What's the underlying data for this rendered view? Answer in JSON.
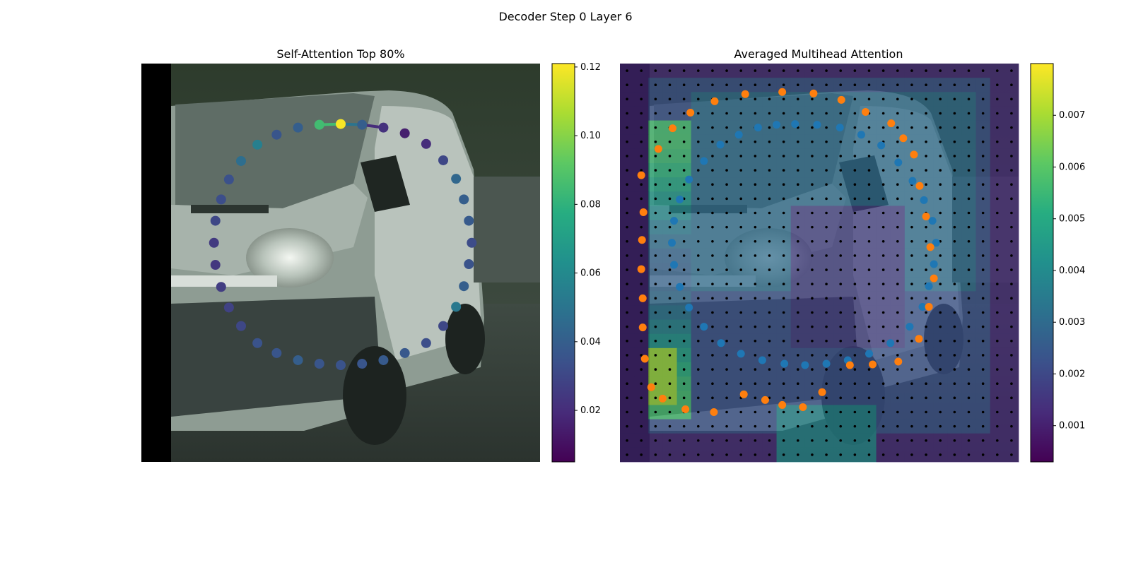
{
  "chart_data": [
    {
      "type": "scatter",
      "title": "Self-Attention Top 80%",
      "background": "van photo (grayscale-green street scene)",
      "xlim": [
        0,
        56
      ],
      "ylim": [
        0,
        56
      ],
      "points": [
        {
          "x": 28,
          "y": 8.5,
          "value": 0.12
        },
        {
          "x": 31,
          "y": 8.6,
          "value": 0.04
        },
        {
          "x": 34,
          "y": 9.0,
          "value": 0.022
        },
        {
          "x": 37,
          "y": 9.8,
          "value": 0.015
        },
        {
          "x": 40,
          "y": 11.3,
          "value": 0.02
        },
        {
          "x": 42.4,
          "y": 13.6,
          "value": 0.03
        },
        {
          "x": 44.2,
          "y": 16.2,
          "value": 0.044
        },
        {
          "x": 45.3,
          "y": 19.1,
          "value": 0.04
        },
        {
          "x": 46.0,
          "y": 22.1,
          "value": 0.038
        },
        {
          "x": 46.4,
          "y": 25.2,
          "value": 0.032
        },
        {
          "x": 46.0,
          "y": 28.2,
          "value": 0.035
        },
        {
          "x": 45.3,
          "y": 31.3,
          "value": 0.04
        },
        {
          "x": 44.2,
          "y": 34.2,
          "value": 0.052
        },
        {
          "x": 42.4,
          "y": 36.9,
          "value": 0.03
        },
        {
          "x": 40,
          "y": 39.3,
          "value": 0.033
        },
        {
          "x": 37,
          "y": 40.7,
          "value": 0.037
        },
        {
          "x": 34,
          "y": 41.7,
          "value": 0.038
        },
        {
          "x": 31,
          "y": 42.2,
          "value": 0.036
        },
        {
          "x": 28,
          "y": 42.4,
          "value": 0.035
        },
        {
          "x": 25,
          "y": 42.2,
          "value": 0.036
        },
        {
          "x": 22,
          "y": 41.7,
          "value": 0.04
        },
        {
          "x": 19,
          "y": 40.7,
          "value": 0.036
        },
        {
          "x": 16.3,
          "y": 39.3,
          "value": 0.035
        },
        {
          "x": 14.0,
          "y": 36.9,
          "value": 0.03
        },
        {
          "x": 12.3,
          "y": 34.3,
          "value": 0.028
        },
        {
          "x": 11.2,
          "y": 31.4,
          "value": 0.026
        },
        {
          "x": 10.4,
          "y": 28.3,
          "value": 0.024
        },
        {
          "x": 10.2,
          "y": 25.2,
          "value": 0.025
        },
        {
          "x": 10.4,
          "y": 22.1,
          "value": 0.03
        },
        {
          "x": 11.2,
          "y": 19.1,
          "value": 0.033
        },
        {
          "x": 12.3,
          "y": 16.3,
          "value": 0.034
        },
        {
          "x": 14.0,
          "y": 13.7,
          "value": 0.047
        },
        {
          "x": 16.3,
          "y": 11.4,
          "value": 0.055
        },
        {
          "x": 19,
          "y": 10.0,
          "value": 0.036
        },
        {
          "x": 22,
          "y": 9.0,
          "value": 0.04
        },
        {
          "x": 25,
          "y": 8.6,
          "value": 0.085
        }
      ],
      "highlight_edges": [
        {
          "from": 0,
          "to": 35,
          "value": 0.085
        },
        {
          "from": 0,
          "to": 1,
          "value": 0.05
        },
        {
          "from": 1,
          "to": 2,
          "value": 0.02
        }
      ],
      "colorbar": {
        "cmap": "viridis",
        "range": [
          0.005,
          0.121
        ],
        "ticks": [
          "0.02",
          "0.04",
          "0.06",
          "0.08",
          "0.10",
          "0.12"
        ],
        "tick_values": [
          0.02,
          0.04,
          0.06,
          0.08,
          0.1,
          0.12
        ]
      }
    },
    {
      "type": "heatmap",
      "title": "Averaged Multihead Attention",
      "background": "van photo overlaid with attention heatmap",
      "grid": {
        "rows": 28,
        "cols": 28
      },
      "blue_points": [
        {
          "x": 24.6,
          "y": 8.5
        },
        {
          "x": 27.7,
          "y": 8.6
        },
        {
          "x": 30.9,
          "y": 9.0
        },
        {
          "x": 33.9,
          "y": 10.0
        },
        {
          "x": 36.7,
          "y": 11.5
        },
        {
          "x": 39.1,
          "y": 13.9
        },
        {
          "x": 41.1,
          "y": 16.5
        },
        {
          "x": 42.7,
          "y": 19.2
        },
        {
          "x": 43.9,
          "y": 22.1
        },
        {
          "x": 44.4,
          "y": 25.2
        },
        {
          "x": 44.1,
          "y": 28.2
        },
        {
          "x": 43.4,
          "y": 31.3
        },
        {
          "x": 42.5,
          "y": 34.2
        },
        {
          "x": 40.7,
          "y": 37.0
        },
        {
          "x": 38.0,
          "y": 39.3
        },
        {
          "x": 35.0,
          "y": 40.8
        },
        {
          "x": 32.0,
          "y": 41.7
        },
        {
          "x": 29.0,
          "y": 42.2
        },
        {
          "x": 26.0,
          "y": 42.4
        },
        {
          "x": 23.1,
          "y": 42.2
        },
        {
          "x": 20.0,
          "y": 41.7
        },
        {
          "x": 17.0,
          "y": 40.8
        },
        {
          "x": 14.2,
          "y": 39.3
        },
        {
          "x": 11.8,
          "y": 37.0
        },
        {
          "x": 9.7,
          "y": 34.3
        },
        {
          "x": 8.4,
          "y": 31.4
        },
        {
          "x": 7.6,
          "y": 28.3
        },
        {
          "x": 7.3,
          "y": 25.2
        },
        {
          "x": 7.6,
          "y": 22.1
        },
        {
          "x": 8.4,
          "y": 19.1
        },
        {
          "x": 9.7,
          "y": 16.3
        },
        {
          "x": 11.8,
          "y": 13.7
        },
        {
          "x": 14.1,
          "y": 11.4
        },
        {
          "x": 16.7,
          "y": 10.0
        },
        {
          "x": 19.4,
          "y": 9.0
        },
        {
          "x": 22.0,
          "y": 8.6
        }
      ],
      "orange_points": [
        {
          "x": 22.8,
          "y": 4.0
        },
        {
          "x": 27.2,
          "y": 4.2
        },
        {
          "x": 31.1,
          "y": 5.1
        },
        {
          "x": 34.5,
          "y": 6.8
        },
        {
          "x": 38.1,
          "y": 8.4
        },
        {
          "x": 39.8,
          "y": 10.5
        },
        {
          "x": 41.3,
          "y": 12.8
        },
        {
          "x": 42.1,
          "y": 17.2
        },
        {
          "x": 43.0,
          "y": 21.5
        },
        {
          "x": 43.6,
          "y": 25.8
        },
        {
          "x": 44.1,
          "y": 30.2
        },
        {
          "x": 43.4,
          "y": 34.2
        },
        {
          "x": 42.0,
          "y": 38.7
        },
        {
          "x": 39.1,
          "y": 41.9
        },
        {
          "x": 35.5,
          "y": 42.3
        },
        {
          "x": 32.3,
          "y": 42.4
        },
        {
          "x": 28.4,
          "y": 46.2
        },
        {
          "x": 25.7,
          "y": 48.3
        },
        {
          "x": 22.8,
          "y": 48.0
        },
        {
          "x": 20.4,
          "y": 47.3
        },
        {
          "x": 17.4,
          "y": 46.5
        },
        {
          "x": 13.2,
          "y": 49.0
        },
        {
          "x": 9.2,
          "y": 48.6
        },
        {
          "x": 6.0,
          "y": 47.1
        },
        {
          "x": 4.4,
          "y": 45.5
        },
        {
          "x": 3.5,
          "y": 41.5
        },
        {
          "x": 3.2,
          "y": 37.1
        },
        {
          "x": 3.2,
          "y": 33.0
        },
        {
          "x": 3.0,
          "y": 28.9
        },
        {
          "x": 3.1,
          "y": 24.8
        },
        {
          "x": 3.3,
          "y": 20.9
        },
        {
          "x": 3.0,
          "y": 15.7
        },
        {
          "x": 5.4,
          "y": 12.0
        },
        {
          "x": 7.4,
          "y": 9.1
        },
        {
          "x": 9.9,
          "y": 6.9
        },
        {
          "x": 13.3,
          "y": 5.3
        },
        {
          "x": 17.6,
          "y": 4.3
        }
      ],
      "colorbar": {
        "cmap": "viridis",
        "range": [
          0.0003,
          0.008
        ],
        "ticks": [
          "0.001",
          "0.002",
          "0.003",
          "0.004",
          "0.005",
          "0.006",
          "0.007"
        ],
        "tick_values": [
          0.001,
          0.002,
          0.003,
          0.004,
          0.005,
          0.006,
          0.007
        ]
      }
    }
  ],
  "suptitle": "Decoder Step 0 Layer 6"
}
